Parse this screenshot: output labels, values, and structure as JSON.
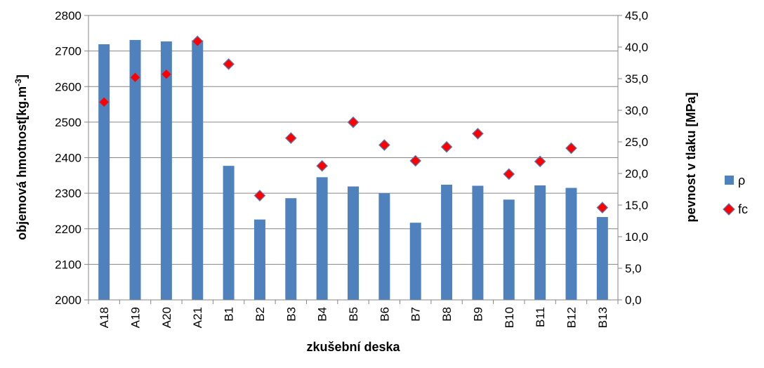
{
  "chart_data": {
    "type": "bar",
    "categories": [
      "A18",
      "A19",
      "A20",
      "A21",
      "B1",
      "B2",
      "B3",
      "B4",
      "B5",
      "B6",
      "B7",
      "B8",
      "B9",
      "B10",
      "B11",
      "B12",
      "B13"
    ],
    "series": [
      {
        "name": "ρ",
        "type": "bar",
        "axis": "left",
        "color": "#4f81bd",
        "values": [
          2719,
          2731,
          2727,
          2730,
          2377,
          2226,
          2286,
          2345,
          2319,
          2300,
          2217,
          2324,
          2321,
          2282,
          2322,
          2315,
          2233
        ]
      },
      {
        "name": "fc",
        "type": "scatter",
        "axis": "right",
        "color": "#ff0000",
        "marker_border": "#4f81bd",
        "values": [
          31.3,
          35.2,
          35.7,
          40.9,
          37.3,
          16.5,
          25.6,
          21.2,
          28.1,
          24.5,
          22.0,
          24.2,
          26.3,
          19.9,
          21.9,
          24.0,
          14.6
        ]
      }
    ],
    "xlabel": "zkušební deska",
    "ylabel_left": "objemová hmotnost[kg.m",
    "ylabel_left_sup": "-3",
    "ylabel_left_end": "]",
    "ylabel_right": "pevnost v tlaku [MPa]",
    "ylim_left": [
      2000,
      2800
    ],
    "yticks_left": [
      "2000",
      "2100",
      "2200",
      "2300",
      "2400",
      "2500",
      "2600",
      "2700",
      "2800"
    ],
    "ylim_right": [
      0,
      45
    ],
    "yticks_right": [
      "0,0",
      "5,0",
      "10,0",
      "15,0",
      "20,0",
      "25,0",
      "30,0",
      "35,0",
      "40,0",
      "45,0"
    ],
    "grid": true,
    "legend_position": "right"
  }
}
